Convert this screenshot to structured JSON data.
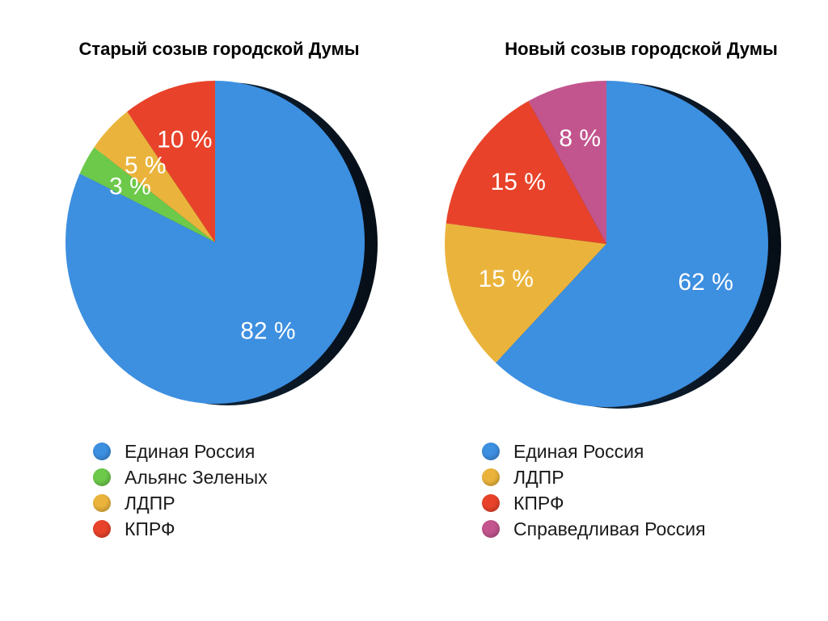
{
  "chart_data": [
    {
      "type": "pie",
      "title": "Старый созыв городской Думы",
      "categories": [
        "Единая Россия",
        "Альянс Зеленых",
        "ЛДПР",
        "КПРФ"
      ],
      "values": [
        82,
        3,
        5,
        10
      ],
      "value_labels": [
        "82 %",
        "3 %",
        "5 %",
        "10 %"
      ],
      "colors": [
        "#3d8fe0",
        "#6cc94a",
        "#eab43c",
        "#e8432a"
      ],
      "legend_labels": [
        "Единая Россия",
        "Альянс Зеленых",
        "ЛДПР",
        "КПРФ"
      ],
      "legend_colors": [
        "#3d8fe0",
        "#6cc94a",
        "#eab43c",
        "#e8432a"
      ],
      "legend_position": "bottom"
    },
    {
      "type": "pie",
      "title": "Новый созыв городской Думы",
      "categories": [
        "Единая Россия",
        "ЛДПР",
        "КПРФ",
        "Справедливая Россия"
      ],
      "values": [
        62,
        15,
        15,
        8
      ],
      "value_labels": [
        "62 %",
        "15 %",
        "15 %",
        "8 %"
      ],
      "colors": [
        "#3d8fe0",
        "#eab43c",
        "#e8432a",
        "#c2558e"
      ],
      "legend_labels": [
        "Единая Россия",
        "ЛДПР",
        "КПРФ",
        "Справедливая Россия"
      ],
      "legend_colors": [
        "#3d8fe0",
        "#eab43c",
        "#e8432a",
        "#c2558e"
      ],
      "legend_position": "bottom"
    }
  ]
}
